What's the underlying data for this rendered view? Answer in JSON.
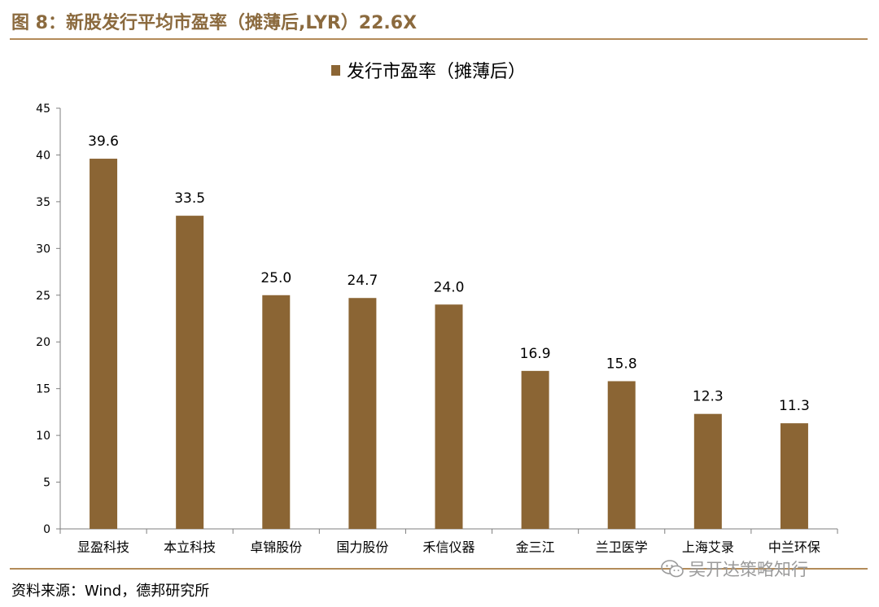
{
  "figure": {
    "title": "图 8：新股发行平均市盈率（摊薄后,LYR）22.6X",
    "source": "资料来源：Wind，德邦研究所",
    "watermark": "吴开达策略知行",
    "watermark_icon": "wechat-icon"
  },
  "chart_data": {
    "type": "bar",
    "legend": {
      "position": "top-center"
    },
    "categories": [
      "显盈科技",
      "本立科技",
      "卓锦股份",
      "国力股份",
      "禾信仪器",
      "金三江",
      "兰卫医学",
      "上海艾录",
      "中兰环保"
    ],
    "series": [
      {
        "name": "发行市盈率（摊薄后）",
        "values": [
          39.6,
          33.5,
          25.0,
          24.7,
          24.0,
          16.9,
          15.8,
          12.3,
          11.3
        ],
        "color": "#8B6534"
      }
    ],
    "data_labels": [
      "39.6",
      "33.5",
      "25.0",
      "24.7",
      "24.0",
      "16.9",
      "15.8",
      "12.3",
      "11.3"
    ],
    "y_ticks": [
      "0",
      "5",
      "10",
      "15",
      "20",
      "25",
      "30",
      "35",
      "40",
      "45"
    ],
    "ylim": [
      0,
      45
    ],
    "grid": false
  }
}
